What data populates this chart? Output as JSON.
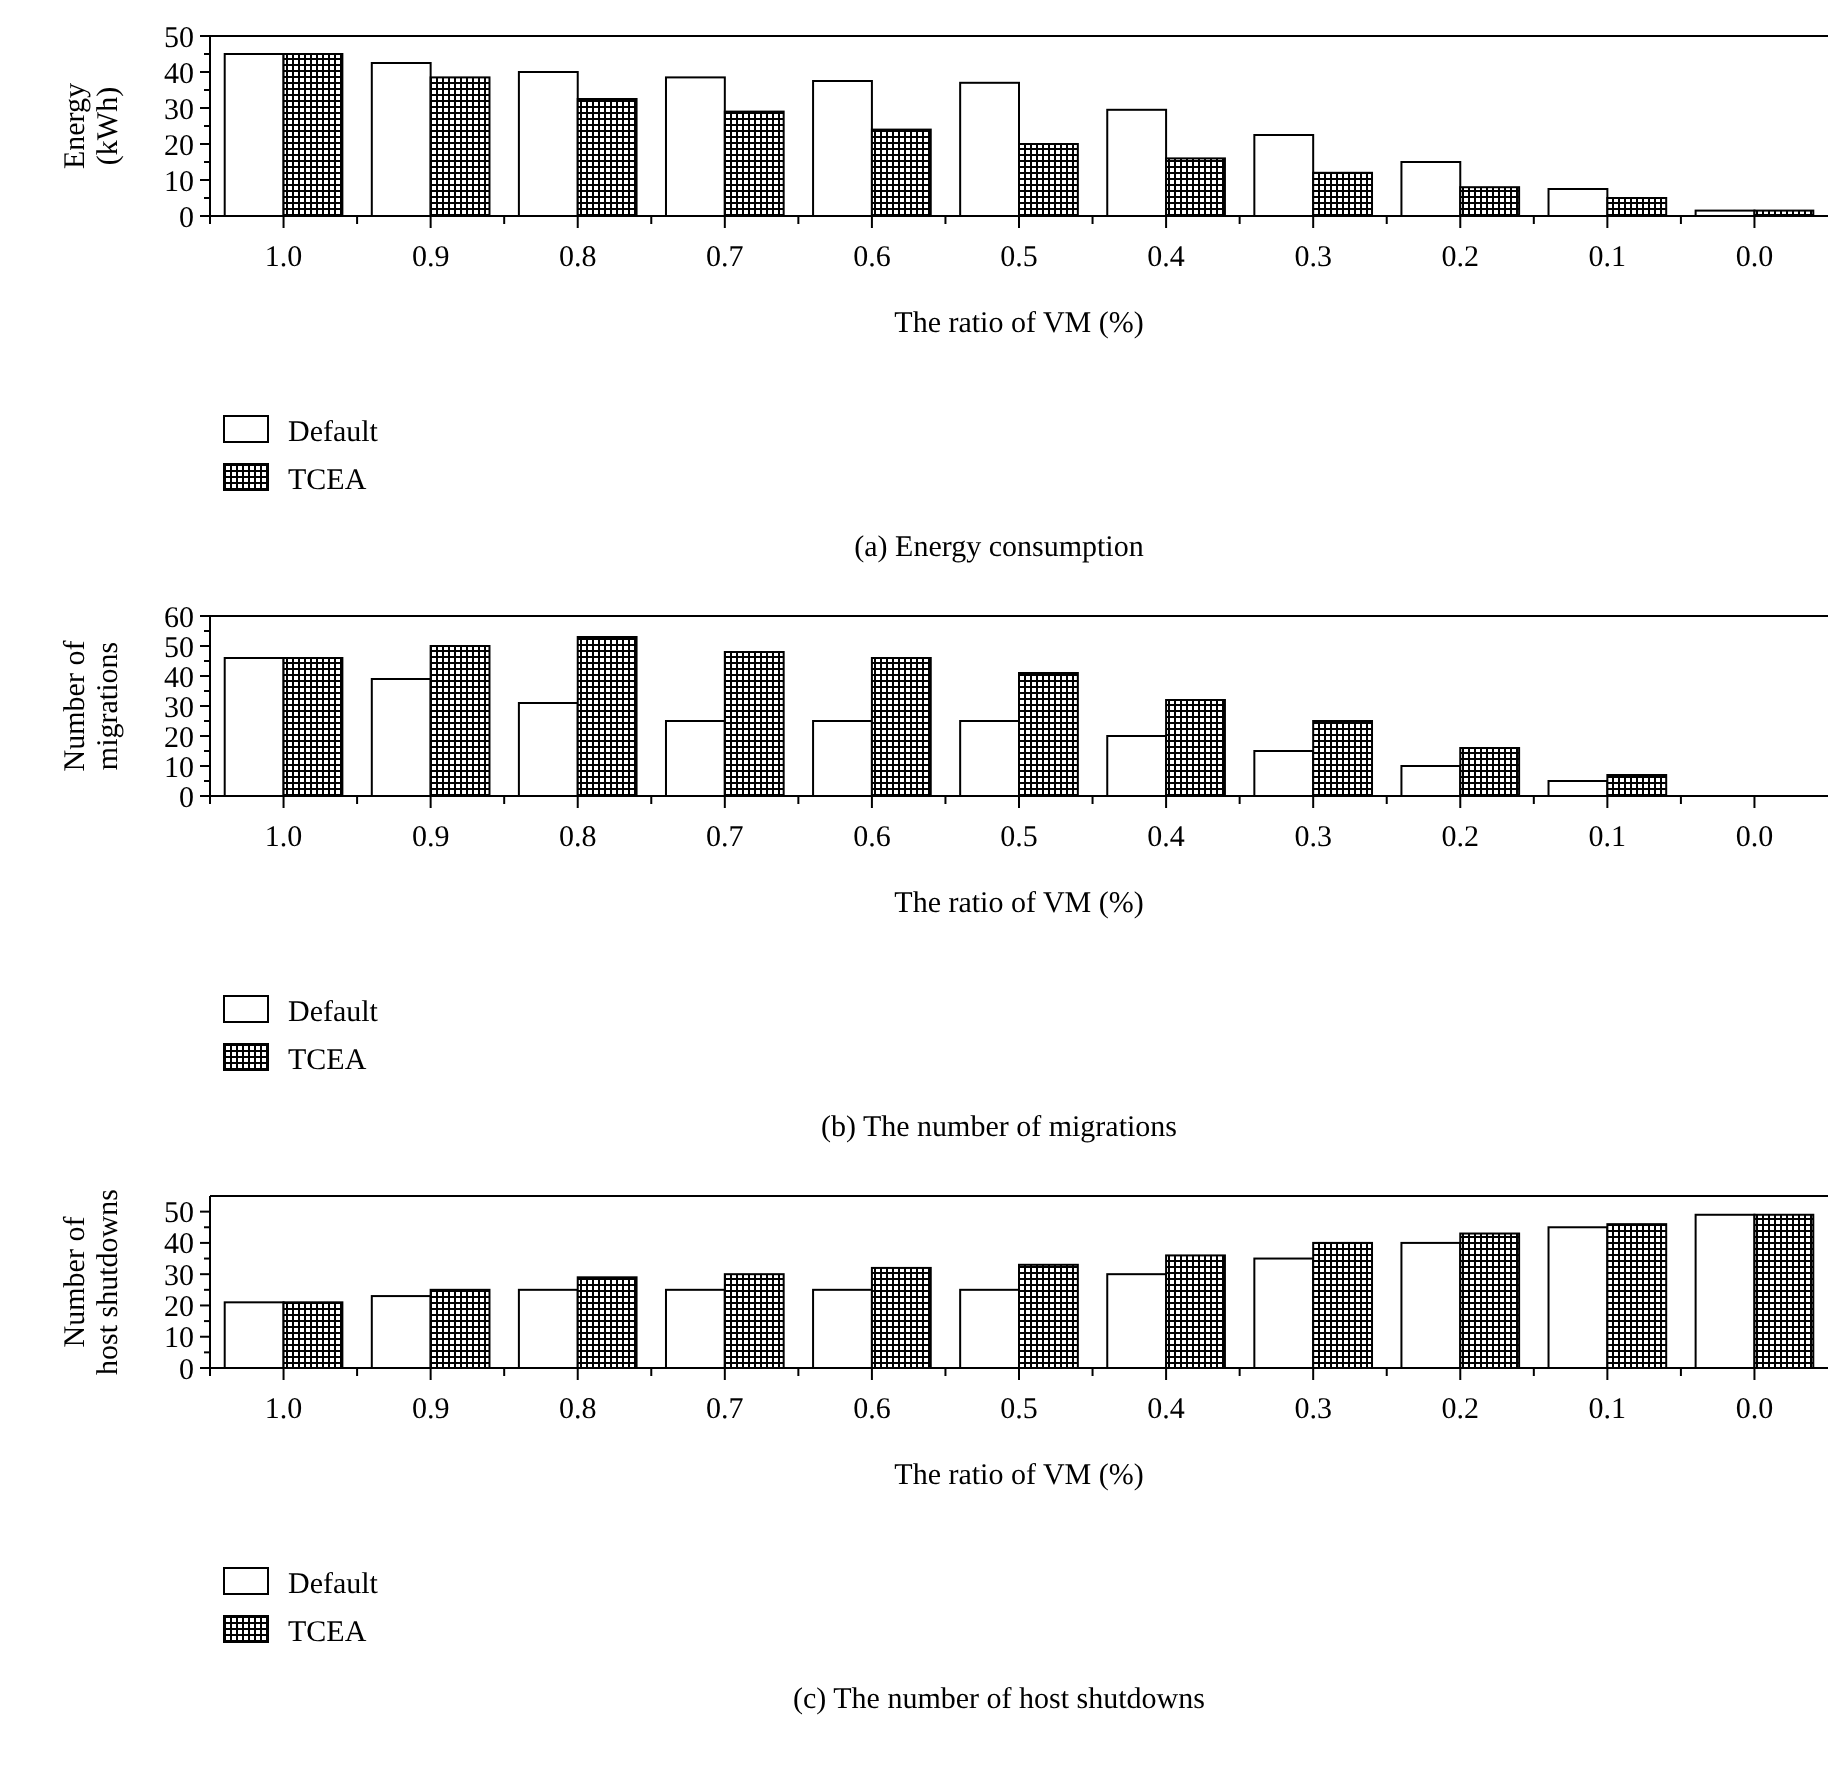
{
  "chart_data": [
    {
      "type": "bar",
      "title": "(a)  Energy consumption",
      "xlabel": "The ratio of VM (%)",
      "ylabel": "Energy\n(kWh)",
      "categories": [
        "1.0",
        "0.9",
        "0.8",
        "0.7",
        "0.6",
        "0.5",
        "0.4",
        "0.3",
        "0.2",
        "0.1",
        "0.0"
      ],
      "series": [
        {
          "name": "Default",
          "color": "#ffffff",
          "values": [
            45,
            42.5,
            40,
            38.5,
            37.5,
            37,
            29.5,
            22.5,
            15,
            7.5,
            1.5
          ]
        },
        {
          "name": "TCEA",
          "color": "#000000",
          "values": [
            45,
            38.5,
            32.5,
            29,
            24,
            20,
            16,
            12,
            8,
            5,
            1.5
          ]
        }
      ],
      "ylim": [
        0,
        50
      ],
      "yticks": [
        0,
        10,
        20,
        30,
        40,
        50
      ],
      "legend": "bottom left",
      "grid": false
    },
    {
      "type": "bar",
      "title": "(b)  The number of migrations",
      "xlabel": "The ratio of VM (%)",
      "ylabel": "Number of\nmigrations",
      "categories": [
        "1.0",
        "0.9",
        "0.8",
        "0.7",
        "0.6",
        "0.5",
        "0.4",
        "0.3",
        "0.2",
        "0.1",
        "0.0"
      ],
      "series": [
        {
          "name": "Default",
          "color": "#ffffff",
          "values": [
            46,
            39,
            31,
            25,
            25,
            25,
            20,
            15,
            10,
            5,
            0
          ]
        },
        {
          "name": "TCEA",
          "color": "#000000",
          "values": [
            46,
            50,
            53,
            48,
            46,
            41,
            32,
            25,
            16,
            7,
            0
          ]
        }
      ],
      "ylim": [
        0,
        60
      ],
      "yticks": [
        0,
        10,
        20,
        30,
        40,
        50,
        60
      ],
      "legend": "bottom left",
      "grid": false
    },
    {
      "type": "bar",
      "title": "(c)  The number of host shutdowns",
      "xlabel": "The ratio of VM (%)",
      "ylabel": "Number of\nhost shutdowns",
      "categories": [
        "1.0",
        "0.9",
        "0.8",
        "0.7",
        "0.6",
        "0.5",
        "0.4",
        "0.3",
        "0.2",
        "0.1",
        "0.0"
      ],
      "series": [
        {
          "name": "Default",
          "color": "#ffffff",
          "values": [
            21,
            23,
            25,
            25,
            25,
            25,
            30,
            35,
            40,
            45,
            49
          ]
        },
        {
          "name": "TCEA",
          "color": "#000000",
          "values": [
            21,
            25,
            29,
            30,
            32,
            33,
            36,
            40,
            43,
            46,
            49
          ]
        }
      ],
      "ylim": [
        0,
        55
      ],
      "yticks": [
        0,
        10,
        20,
        30,
        40,
        50
      ],
      "legend": "bottom left",
      "grid": false
    }
  ]
}
